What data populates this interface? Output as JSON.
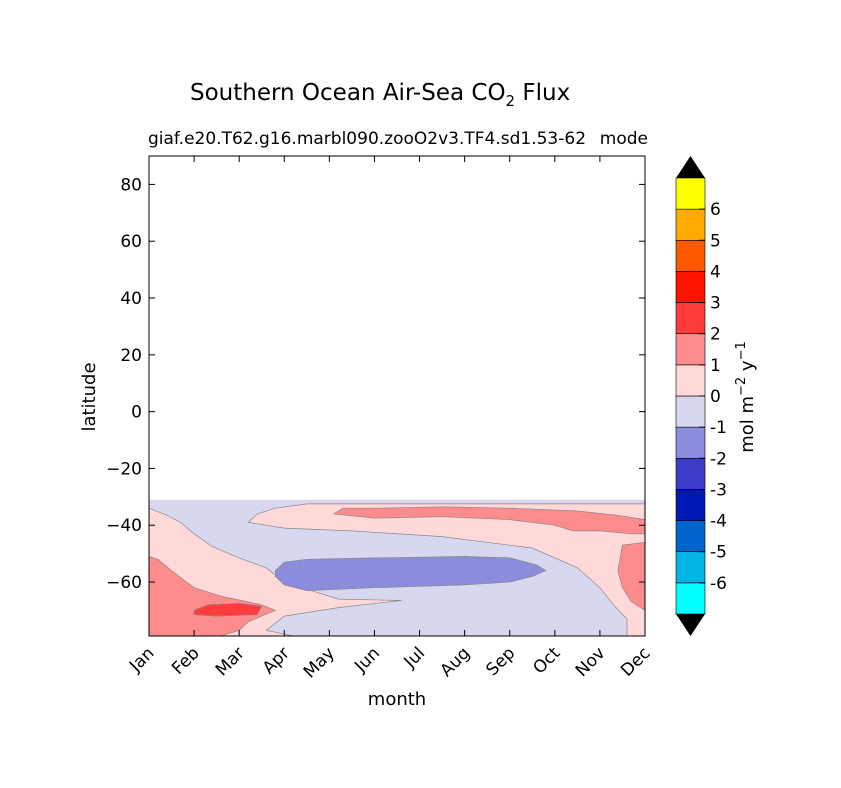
{
  "chart_data": {
    "type": "heatmap",
    "title_main": "Southern Ocean Air-Sea CO",
    "title_sub_script": "2",
    "title_tail": "Flux",
    "subtitle_left": "giaf.e20.T62.g16.marbl090.zooO2v3.TF4.sd1.53-62",
    "subtitle_right": "mode",
    "xlabel": "month",
    "ylabel": "latitude",
    "x_categories": [
      "Jan",
      "Feb",
      "Mar",
      "Apr",
      "May",
      "Jun",
      "Jul",
      "Aug",
      "Sep",
      "Oct",
      "Nov",
      "Dec"
    ],
    "y_ticks": [
      80,
      60,
      40,
      20,
      0,
      -20,
      -40,
      -60
    ],
    "y_tick_labels": [
      "80",
      "60",
      "40",
      "20",
      "0",
      "−20",
      "−40",
      "−60"
    ],
    "ylim": [
      -79,
      90
    ],
    "data_extent_lat": [
      -79,
      -31
    ],
    "colorbar": {
      "label": "mol m",
      "label_exp1": "−2",
      "label_unit2": "y",
      "label_exp2": "−1",
      "levels": [
        -7,
        -6,
        -5,
        -4,
        -3,
        -2,
        -1,
        0,
        1,
        2,
        3,
        4,
        5,
        6,
        7
      ],
      "tick_labels": [
        "-6",
        "-5",
        "-4",
        "-3",
        "-2",
        "-1",
        "0",
        "1",
        "2",
        "3",
        "4",
        "5",
        "6"
      ],
      "colors": [
        "#00ffff",
        "#00b4e6",
        "#0064cd",
        "#0019b4",
        "#3c3cc8",
        "#8c8cdc",
        "#d7d7f0",
        "#ffd9d9",
        "#ff8c8c",
        "#ff3c3c",
        "#ff1400",
        "#ff5a00",
        "#ffaa00",
        "#ffff00"
      ],
      "extend_color": "#000000"
    },
    "contour_regions": [
      {
        "level_range": [
          -1,
          0
        ],
        "color": "#d7d7f0",
        "points": [
          [
            0.0,
            -31
          ],
          [
            11.0,
            -31
          ],
          [
            11.0,
            -79
          ],
          [
            0.0,
            -79
          ]
        ]
      },
      {
        "level_range": [
          0,
          1
        ],
        "color": "#ffd9d9",
        "points": [
          [
            0.0,
            -79
          ],
          [
            0.0,
            -34
          ],
          [
            0.4,
            -36.5
          ],
          [
            0.7,
            -39
          ],
          [
            1.0,
            -43
          ],
          [
            1.4,
            -47.5
          ],
          [
            2.0,
            -51.5
          ],
          [
            2.6,
            -55
          ],
          [
            3.0,
            -60
          ],
          [
            3.4,
            -62
          ],
          [
            4.2,
            -66
          ],
          [
            5.6,
            -66.5
          ],
          [
            4.2,
            -69
          ],
          [
            3.0,
            -72
          ],
          [
            2.6,
            -77
          ],
          [
            3.2,
            -79
          ]
        ]
      },
      {
        "level_range": [
          0,
          1
        ],
        "color": "#ffd9d9",
        "points": [
          [
            2.2,
            -39
          ],
          [
            2.4,
            -36
          ],
          [
            2.8,
            -34
          ],
          [
            3.5,
            -32.5
          ],
          [
            5.0,
            -32.5
          ],
          [
            8.0,
            -32.5
          ],
          [
            10.0,
            -32.5
          ],
          [
            11.0,
            -32.5
          ],
          [
            11.0,
            -79
          ],
          [
            10.6,
            -79
          ],
          [
            10.6,
            -73
          ],
          [
            10.3,
            -68
          ],
          [
            10.0,
            -62
          ],
          [
            9.5,
            -55
          ],
          [
            8.5,
            -48
          ],
          [
            6.5,
            -44
          ],
          [
            4.5,
            -42
          ],
          [
            3.0,
            -41
          ],
          [
            2.2,
            -39
          ]
        ]
      },
      {
        "level_range": [
          1,
          2
        ],
        "color": "#ff8c8c",
        "points": [
          [
            0.0,
            -79
          ],
          [
            0.0,
            -51
          ],
          [
            0.2,
            -52
          ],
          [
            0.5,
            -56
          ],
          [
            1.0,
            -62
          ],
          [
            1.6,
            -65
          ],
          [
            2.5,
            -68
          ],
          [
            2.8,
            -70
          ],
          [
            2.2,
            -74
          ],
          [
            2.0,
            -77
          ],
          [
            1.6,
            -79
          ]
        ]
      },
      {
        "level_range": [
          1,
          2
        ],
        "color": "#ff8c8c",
        "points": [
          [
            4.1,
            -36
          ],
          [
            4.3,
            -34
          ],
          [
            5.0,
            -34
          ],
          [
            6.5,
            -33.5
          ],
          [
            8.0,
            -34
          ],
          [
            9.5,
            -35
          ],
          [
            10.4,
            -36.5
          ],
          [
            11.0,
            -38
          ],
          [
            11.0,
            -43
          ],
          [
            10.7,
            -43
          ],
          [
            10.0,
            -42
          ],
          [
            9.4,
            -42
          ],
          [
            9.0,
            -40
          ],
          [
            8.0,
            -38
          ],
          [
            6.5,
            -37
          ],
          [
            5.0,
            -37.5
          ],
          [
            4.1,
            -36
          ]
        ]
      },
      {
        "level_range": [
          1,
          2
        ],
        "color": "#ff8c8c",
        "points": [
          [
            10.5,
            -47
          ],
          [
            11.0,
            -46
          ],
          [
            11.0,
            -70
          ],
          [
            10.7,
            -67
          ],
          [
            10.5,
            -62
          ],
          [
            10.4,
            -56
          ],
          [
            10.5,
            -47
          ]
        ]
      },
      {
        "level_range": [
          2,
          3
        ],
        "color": "#ff3c3c",
        "points": [
          [
            1.0,
            -70
          ],
          [
            1.3,
            -68
          ],
          [
            2.0,
            -67.5
          ],
          [
            2.5,
            -68.5
          ],
          [
            2.4,
            -71.5
          ],
          [
            1.5,
            -72
          ],
          [
            1.0,
            -71.5
          ]
        ]
      },
      {
        "level_range": [
          -2,
          -1
        ],
        "color": "#8c8cdc",
        "points": [
          [
            2.8,
            -56
          ],
          [
            3.0,
            -53
          ],
          [
            3.5,
            -52
          ],
          [
            5.0,
            -51.5
          ],
          [
            7.0,
            -51
          ],
          [
            8.0,
            -51.5
          ],
          [
            8.6,
            -54
          ],
          [
            8.8,
            -56
          ],
          [
            8.5,
            -58
          ],
          [
            8.0,
            -60
          ],
          [
            7.0,
            -61
          ],
          [
            5.0,
            -62
          ],
          [
            3.5,
            -63
          ],
          [
            3.0,
            -61
          ],
          [
            2.8,
            -58
          ]
        ]
      }
    ]
  }
}
